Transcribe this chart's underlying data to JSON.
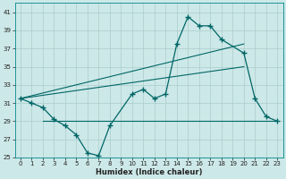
{
  "xlabel": "Humidex (Indice chaleur)",
  "background_color": "#cde8e8",
  "line_color": "#006666",
  "grid_color": "#aacccc",
  "xlim": [
    -0.5,
    23.5
  ],
  "ylim": [
    25,
    42
  ],
  "yticks": [
    25,
    27,
    29,
    31,
    33,
    35,
    37,
    39,
    41
  ],
  "xticks": [
    0,
    1,
    2,
    3,
    4,
    5,
    6,
    7,
    8,
    9,
    10,
    11,
    12,
    13,
    14,
    15,
    16,
    17,
    18,
    19,
    20,
    21,
    22,
    23
  ],
  "series1_x": [
    0,
    1,
    2,
    3,
    4,
    5,
    6,
    7,
    8,
    10,
    11,
    12,
    13,
    14,
    15,
    16,
    17,
    18,
    20,
    21,
    22,
    23
  ],
  "series1_y": [
    31.5,
    31,
    30.5,
    29.2,
    28.5,
    27.5,
    25.5,
    25.2,
    28.5,
    32.0,
    32.5,
    31.5,
    32.0,
    37.5,
    40.5,
    39.5,
    39.5,
    38.0,
    36.5,
    31.5,
    29.5,
    29.0
  ],
  "series2_x": [
    0,
    20
  ],
  "series2_y": [
    31.5,
    37.5
  ],
  "series3_x": [
    0,
    20
  ],
  "series3_y": [
    31.5,
    35.0
  ],
  "series4_x": [
    2,
    23
  ],
  "series4_y": [
    29.0,
    29.0
  ]
}
